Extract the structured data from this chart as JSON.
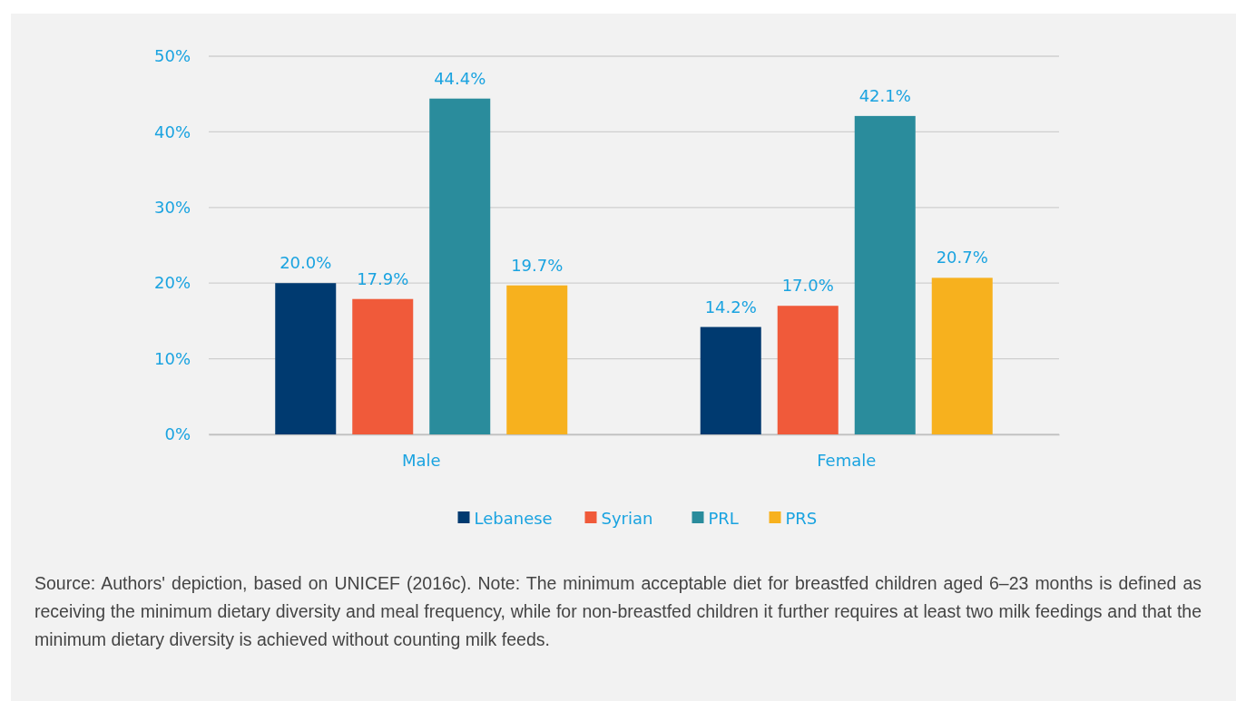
{
  "chart_data": {
    "type": "bar",
    "categories": [
      "Male",
      "Female"
    ],
    "series": [
      {
        "name": "Lebanese",
        "color": "#003a70",
        "values": [
          20.0,
          14.2
        ],
        "value_labels": [
          "20.0%",
          "14.2%"
        ]
      },
      {
        "name": "Syrian",
        "color": "#f05a3a",
        "values": [
          17.9,
          17.0
        ],
        "value_labels": [
          "17.9%",
          "17.0%"
        ]
      },
      {
        "name": "PRL",
        "color": "#2a8c9c",
        "values": [
          44.4,
          42.1
        ],
        "value_labels": [
          "44.4%",
          "42.1%"
        ]
      },
      {
        "name": "PRS",
        "color": "#f7b11e",
        "values": [
          19.7,
          20.7
        ],
        "value_labels": [
          "19.7%",
          "20.7%"
        ]
      }
    ],
    "ylim": [
      0,
      50
    ],
    "yticks": [
      {
        "value": 0,
        "label": "0%"
      },
      {
        "value": 10,
        "label": "10%"
      },
      {
        "value": 20,
        "label": "20%"
      },
      {
        "value": 30,
        "label": "30%"
      },
      {
        "value": 40,
        "label": "40%"
      },
      {
        "value": 50,
        "label": "50%"
      }
    ],
    "grid": "y",
    "legend": "bottom",
    "annotations": [
      "Source: Authors' depiction, based on UNICEF (2016c). Note: The minimum acceptable diet for breastfed children aged 6–23 months is defined as receiving the minimum dietary diversity and meal frequency, while for non-breastfed children it further requires at least two milk feedings and that the minimum dietary diversity is achieved without counting milk feeds."
    ]
  }
}
